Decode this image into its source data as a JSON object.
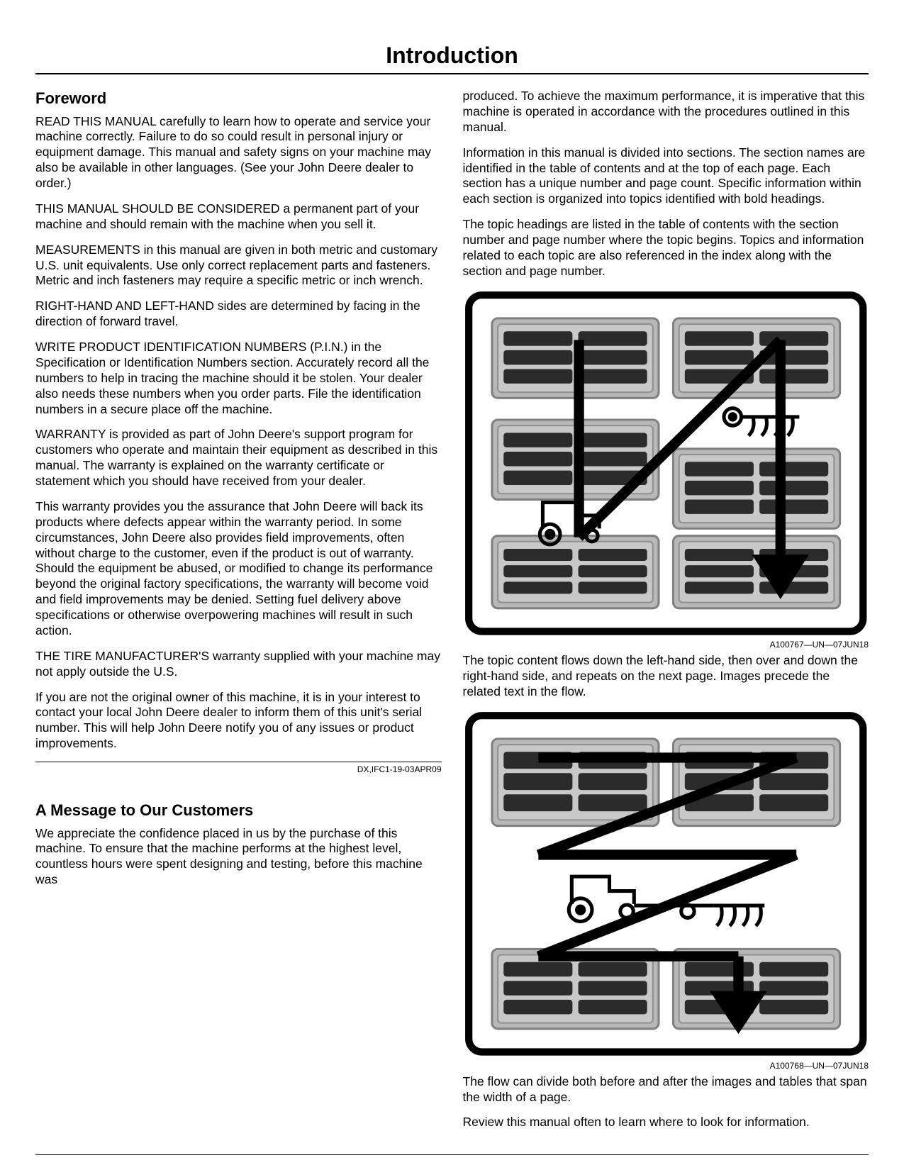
{
  "title": "Introduction",
  "left": {
    "foreword_heading": "Foreword",
    "p1": "READ THIS MANUAL carefully to learn how to operate and service your machine correctly. Failure to do so could result in personal injury or equipment damage. This manual and safety signs on your machine may also be available in other languages. (See your John Deere dealer to order.)",
    "p2": "THIS MANUAL SHOULD BE CONSIDERED a permanent part of your machine and should remain with the machine when you sell it.",
    "p3": "MEASUREMENTS in this manual are given in both metric and customary U.S. unit equivalents. Use only correct replacement parts and fasteners. Metric and inch fasteners may require a specific metric or inch wrench.",
    "p4": "RIGHT-HAND AND LEFT-HAND sides are determined by facing in the direction of forward travel.",
    "p5": "WRITE PRODUCT IDENTIFICATION NUMBERS (P.I.N.) in the Specification or Identification Numbers section. Accurately record all the numbers to help in tracing the machine should it be stolen. Your dealer also needs these numbers when you order parts. File the identification numbers in a secure place off the machine.",
    "p6": "WARRANTY is provided as part of John Deere's support program for customers who operate and maintain their equipment as described in this manual. The warranty is explained on the warranty certificate or statement which you should have received from your dealer.",
    "p7": "This warranty provides you the assurance that John Deere will back its products where defects appear within the warranty period. In some circumstances, John Deere also provides field improvements, often without charge to the customer, even if the product is out of warranty. Should the equipment be abused, or modified to change its performance beyond the original factory specifications, the warranty will become void and field improvements may be denied. Setting fuel delivery above specifications or otherwise overpowering machines will result in such action.",
    "p8": "THE TIRE MANUFACTURER'S warranty supplied with your machine may not apply outside the U.S.",
    "p9": "If you are not the original owner of this machine, it is in your interest to contact your local John Deere dealer to inform them of this unit's serial number. This will help John Deere notify you of any issues or product improvements.",
    "ref1": "DX,IFC1-19-03APR09",
    "message_heading": "A Message to Our Customers",
    "p10": "We appreciate the confidence placed in us by the purchase of this machine. To ensure that the machine performs at the highest level, countless hours were spent designing and testing, before this machine was"
  },
  "right": {
    "p1": "produced. To achieve the maximum performance, it is imperative that this machine is operated in accordance with the procedures outlined in this manual.",
    "p2": "Information in this manual is divided into sections. The section names are identified in the table of contents and at the top of each page. Each section has a unique number and page count. Specific information within each section is organized into topics identified with bold headings.",
    "p3": "The topic headings are listed in the table of contents with the section number and page number where the topic begins. Topics and information related to each topic are also referenced in the index along with the section and page number.",
    "fig1_caption": "A100767—UN—07JUN18",
    "p4": "The topic content flows down the left-hand side, then over and down the right-hand side, and repeats on the next page. Images precede the related text in the flow.",
    "fig2_caption": "A100768—UN—07JUN18",
    "p5": "The flow can divide both before and after the images and tables that span the width of a page.",
    "p6": "Review this manual often to learn where to look for information."
  },
  "diagram_style": {
    "outer_stroke": "#000000",
    "outer_stroke_width": 8,
    "corner_radius": 18,
    "inner_fill": "#ffffff",
    "block_fill": "#b8b8b8",
    "block_stroke": "#808080",
    "bar_fill": "#2b2b2b",
    "arrow_stroke": "#000000",
    "arrow_width": 10
  }
}
